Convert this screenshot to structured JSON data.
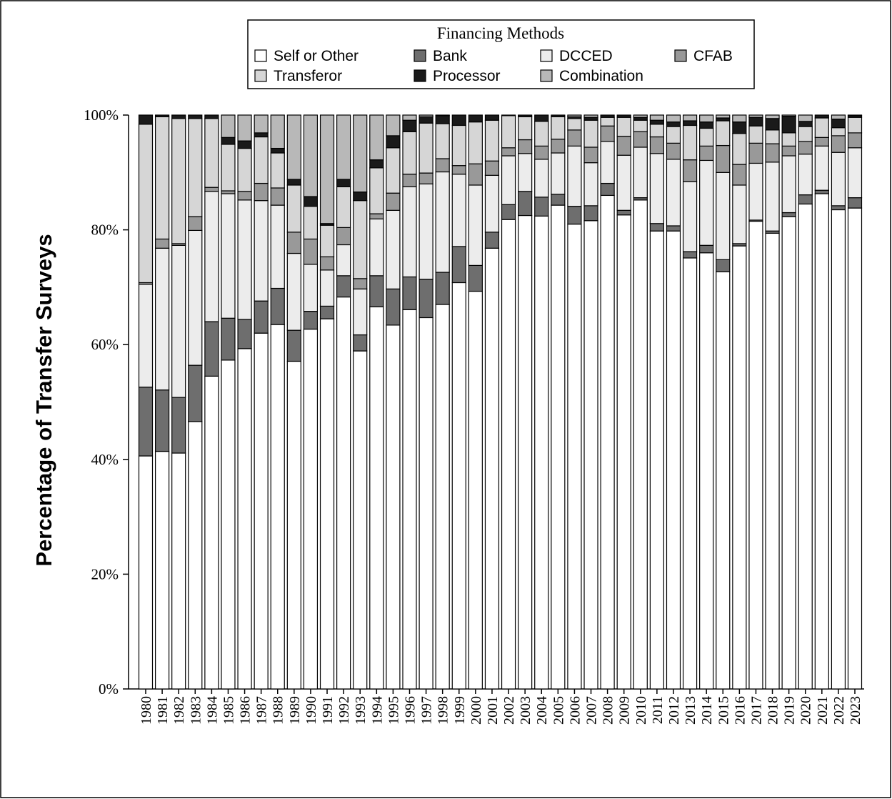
{
  "chart_data": {
    "type": "stacked_bar",
    "legend_title": "Financing Methods",
    "y_label": "Percentage of Transfer Surveys",
    "categories": [
      "1980",
      "1981",
      "1982",
      "1983",
      "1984",
      "1985",
      "1986",
      "1987",
      "1988",
      "1989",
      "1990",
      "1991",
      "1992",
      "1993",
      "1994",
      "1995",
      "1996",
      "1997",
      "1998",
      "1999",
      "2000",
      "2001",
      "2002",
      "2003",
      "2004",
      "2005",
      "2006",
      "2007",
      "2008",
      "2009",
      "2010",
      "2011",
      "2012",
      "2013",
      "2014",
      "2015",
      "2016",
      "2017",
      "2018",
      "2019",
      "2020",
      "2021",
      "2022",
      "2023"
    ],
    "series": [
      {
        "name": "Self or Other",
        "color": "#ffffff",
        "values": [
          40.6,
          41.4,
          41.1,
          46.6,
          54.5,
          57.3,
          59.3,
          62.0,
          63.5,
          57.1,
          62.7,
          64.5,
          68.3,
          58.9,
          66.6,
          63.4,
          66.1,
          64.7,
          67.0,
          70.8,
          69.3,
          76.8,
          81.8,
          82.5,
          82.4,
          84.3,
          81.0,
          81.6,
          86.0,
          82.6,
          85.2,
          79.8,
          79.8,
          75.1,
          76.0,
          72.7,
          77.2,
          81.5,
          79.4,
          82.3,
          84.5,
          86.3,
          83.5,
          83.8
        ]
      },
      {
        "name": "Bank",
        "color": "#6e6e6e",
        "values": [
          12.0,
          10.7,
          9.7,
          9.8,
          9.5,
          7.3,
          5.1,
          5.6,
          6.3,
          5.4,
          3.1,
          2.2,
          3.7,
          2.8,
          5.4,
          6.3,
          5.7,
          6.7,
          5.6,
          6.3,
          4.5,
          2.8,
          2.6,
          4.2,
          3.3,
          1.9,
          3.1,
          2.6,
          2.1,
          0.8,
          0.4,
          1.3,
          0.9,
          1.1,
          1.3,
          2.1,
          0.4,
          0.2,
          0.4,
          0.7,
          1.6,
          0.6,
          0.7,
          1.8
        ]
      },
      {
        "name": "DCCED",
        "color": "#ececec",
        "values": [
          17.9,
          24.7,
          26.5,
          23.5,
          22.7,
          21.7,
          20.8,
          17.5,
          14.5,
          13.4,
          8.2,
          6.3,
          5.4,
          8.0,
          9.9,
          13.7,
          15.7,
          16.6,
          17.5,
          12.6,
          14.0,
          9.9,
          8.5,
          6.6,
          6.6,
          7.2,
          10.5,
          7.5,
          7.3,
          9.6,
          8.8,
          12.2,
          11.6,
          12.2,
          14.8,
          15.2,
          10.2,
          9.9,
          12.0,
          9.9,
          7.1,
          7.7,
          9.3,
          8.7
        ]
      },
      {
        "name": "CFAB",
        "color": "#999999",
        "values": [
          0.3,
          1.6,
          0.3,
          2.4,
          0.7,
          0.5,
          1.5,
          3.0,
          3.0,
          3.7,
          4.4,
          2.3,
          3.0,
          1.8,
          0.9,
          3.0,
          2.2,
          1.9,
          2.3,
          1.5,
          3.7,
          2.5,
          1.4,
          2.4,
          2.3,
          2.4,
          2.8,
          2.7,
          2.7,
          3.3,
          2.7,
          2.9,
          2.8,
          3.8,
          2.5,
          4.7,
          3.6,
          3.5,
          3.2,
          1.7,
          2.2,
          1.5,
          2.9,
          2.6
        ]
      },
      {
        "name": "Transferor",
        "color": "#d6d6d6",
        "values": [
          27.6,
          21.3,
          21.8,
          17.1,
          12.0,
          8.1,
          7.5,
          8.1,
          6.1,
          8.2,
          5.7,
          5.5,
          7.1,
          13.6,
          8.0,
          7.9,
          7.4,
          8.7,
          6.1,
          7.0,
          7.3,
          7.1,
          5.6,
          4.0,
          4.3,
          3.9,
          2.0,
          4.7,
          1.5,
          3.3,
          2.0,
          2.2,
          2.9,
          6.0,
          3.1,
          4.3,
          5.4,
          3.0,
          2.4,
          2.3,
          2.6,
          3.4,
          1.4,
          2.7
        ]
      },
      {
        "name": "Processor",
        "color": "#1a1a1a",
        "values": [
          1.6,
          0.3,
          0.6,
          0.6,
          0.6,
          1.2,
          1.3,
          0.7,
          0.8,
          1.0,
          1.7,
          0.3,
          1.3,
          1.5,
          1.4,
          2.1,
          2.0,
          1.1,
          1.4,
          1.8,
          1.2,
          0.9,
          0.1,
          0.3,
          1.1,
          0.3,
          0.3,
          0.5,
          0.4,
          0.4,
          0.5,
          0.7,
          0.8,
          0.8,
          1.1,
          0.5,
          2.0,
          1.5,
          2.0,
          2.9,
          0.9,
          0.5,
          1.5,
          0.3
        ]
      },
      {
        "name": "Combination",
        "color": "#b8b8b8",
        "values": [
          0,
          0,
          0,
          0,
          0,
          3.9,
          4.5,
          3.1,
          5.8,
          11.2,
          14.2,
          18.9,
          11.2,
          13.4,
          7.8,
          3.6,
          0.9,
          0.3,
          0.1,
          0,
          0,
          0,
          0,
          0,
          0,
          0,
          0.3,
          0.4,
          0,
          0,
          0.4,
          0.9,
          1.2,
          1.0,
          1.2,
          0.5,
          1.2,
          0.4,
          0.6,
          0.2,
          1.1,
          0,
          0.7,
          0.1
        ]
      }
    ],
    "ylim": [
      0,
      100
    ],
    "yticks": [
      {
        "value": 0,
        "label": "0%"
      },
      {
        "value": 20,
        "label": "20%"
      },
      {
        "value": 40,
        "label": "40%"
      },
      {
        "value": 60,
        "label": "60%"
      },
      {
        "value": 80,
        "label": "80%"
      },
      {
        "value": 100,
        "label": "100%"
      }
    ]
  }
}
